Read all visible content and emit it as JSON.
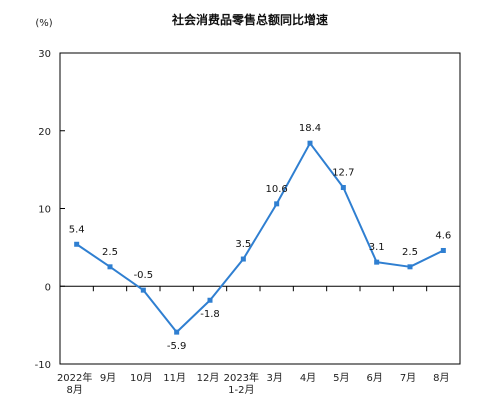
{
  "chart_data": {
    "type": "line",
    "title": "社会消费品零售总额同比增速",
    "unit_label": "(%)",
    "ylim": [
      -10,
      30
    ],
    "yticks": [
      -10,
      0,
      10,
      20,
      30
    ],
    "grid": false,
    "categories": [
      [
        "2022年",
        "8月"
      ],
      [
        "9月"
      ],
      [
        "10月"
      ],
      [
        "11月"
      ],
      [
        "12月"
      ],
      [
        "2023年",
        "1-2月"
      ],
      [
        "3月"
      ],
      [
        "4月"
      ],
      [
        "5月"
      ],
      [
        "6月"
      ],
      [
        "7月"
      ],
      [
        "8月"
      ]
    ],
    "series": [
      {
        "values": [
          5.4,
          2.5,
          -0.5,
          -5.9,
          -1.8,
          3.5,
          10.6,
          18.4,
          12.7,
          3.1,
          2.5,
          4.6
        ],
        "labels": [
          "5.4",
          "2.5",
          "-0.5",
          "-5.9",
          "-1.8",
          "3.5",
          "10.6",
          "18.4",
          "12.7",
          "3.1",
          "2.5",
          "4.6"
        ],
        "color": "#2f7fd1"
      }
    ]
  }
}
